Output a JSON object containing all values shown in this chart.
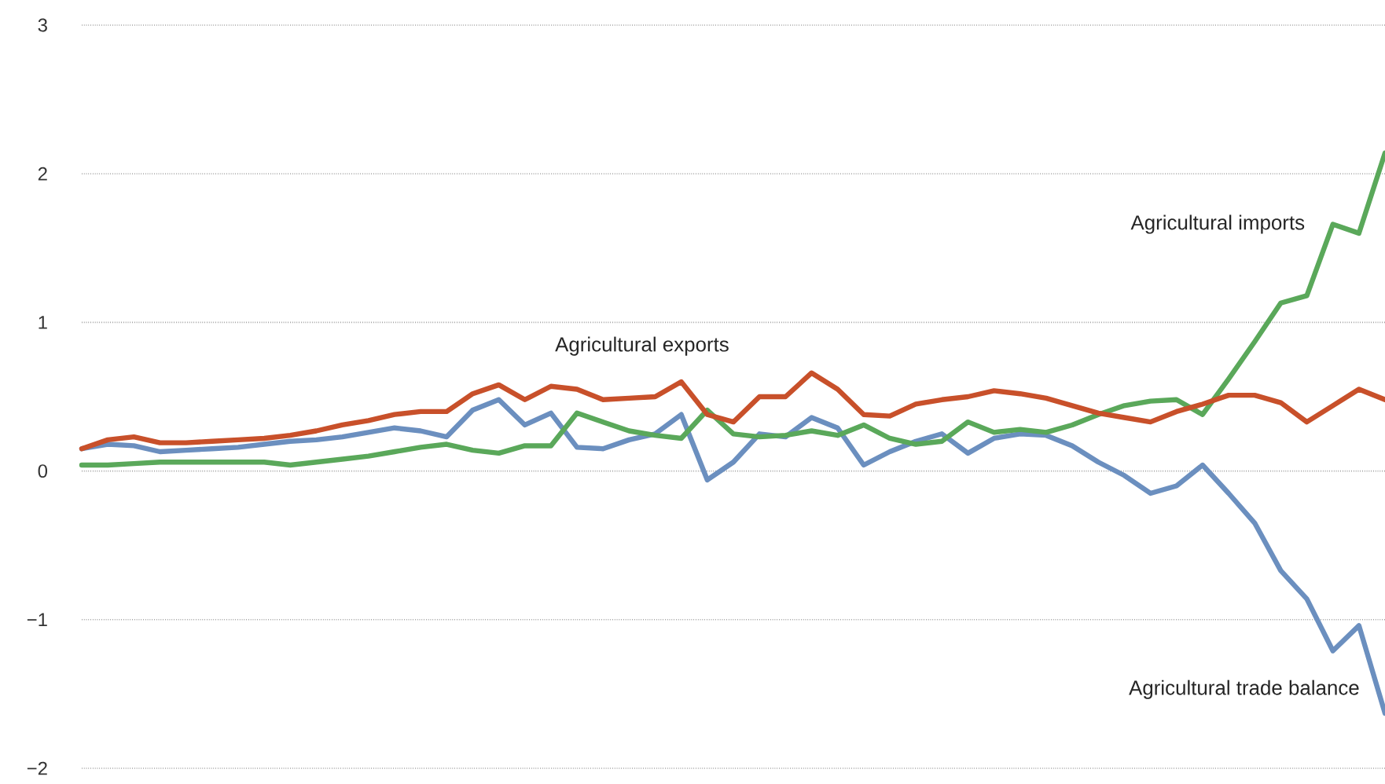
{
  "chart_data": {
    "type": "line",
    "categories": [
      null,
      null,
      null,
      null,
      null,
      null,
      null,
      null,
      null,
      null,
      null,
      null,
      null,
      null,
      null,
      null,
      null,
      null,
      null,
      null,
      null,
      null,
      null,
      null,
      null,
      null,
      null,
      null,
      null,
      null,
      null,
      null,
      null,
      null,
      null,
      null,
      null,
      null,
      null,
      null,
      null,
      null,
      null,
      null,
      null,
      null,
      null,
      null,
      null,
      null,
      null
    ],
    "ylim": [
      -2,
      3
    ],
    "yticks": [
      {
        "value": -2,
        "label": "−2"
      },
      {
        "value": -1,
        "label": "−1"
      },
      0,
      1,
      2,
      3
    ],
    "grid": "y",
    "legend": false,
    "marker": "none",
    "line_style": "solid",
    "series": [
      {
        "name": "Agricultural trade balance",
        "color": "#6b8fbf",
        "values": [
          0.15,
          0.18,
          0.17,
          0.13,
          0.14,
          0.15,
          0.16,
          0.18,
          0.2,
          0.21,
          0.23,
          0.26,
          0.29,
          0.27,
          0.23,
          0.41,
          0.48,
          0.31,
          0.39,
          0.16,
          0.15,
          0.21,
          0.25,
          0.38,
          -0.06,
          0.06,
          0.25,
          0.23,
          0.36,
          0.29,
          0.04,
          0.13,
          0.2,
          0.25,
          0.12,
          0.22,
          0.25,
          0.24,
          0.17,
          0.06,
          -0.03,
          -0.15,
          -0.1,
          0.04,
          -0.15,
          -0.35,
          -0.67,
          -0.86,
          -1.21,
          -1.04,
          -1.63
        ]
      },
      {
        "name": "Agricultural imports",
        "color": "#5aa85a",
        "values": [
          0.04,
          0.04,
          0.05,
          0.06,
          0.06,
          0.06,
          0.06,
          0.06,
          0.04,
          0.06,
          0.08,
          0.1,
          0.13,
          0.16,
          0.18,
          0.14,
          0.12,
          0.17,
          0.17,
          0.39,
          0.33,
          0.27,
          0.24,
          0.22,
          0.41,
          0.25,
          0.23,
          0.24,
          0.27,
          0.24,
          0.31,
          0.22,
          0.18,
          0.2,
          0.33,
          0.26,
          0.28,
          0.26,
          0.31,
          0.38,
          0.44,
          0.47,
          0.48,
          0.38,
          0.62,
          0.87,
          1.13,
          1.18,
          1.66,
          1.6,
          2.14
        ]
      },
      {
        "name": "Agricultural exports",
        "color": "#c8502a",
        "values": [
          0.15,
          0.21,
          0.23,
          0.19,
          0.19,
          0.2,
          0.21,
          0.22,
          0.24,
          0.27,
          0.31,
          0.34,
          0.38,
          0.4,
          0.4,
          0.52,
          0.58,
          0.48,
          0.57,
          0.55,
          0.48,
          0.49,
          0.5,
          0.6,
          0.38,
          0.33,
          0.5,
          0.5,
          0.66,
          0.55,
          0.38,
          0.37,
          0.45,
          0.48,
          0.5,
          0.54,
          0.52,
          0.49,
          0.44,
          0.39,
          0.36,
          0.33,
          0.4,
          0.45,
          0.51,
          0.51,
          0.46,
          0.33,
          0.44,
          0.55,
          0.48
        ]
      }
    ]
  }
}
